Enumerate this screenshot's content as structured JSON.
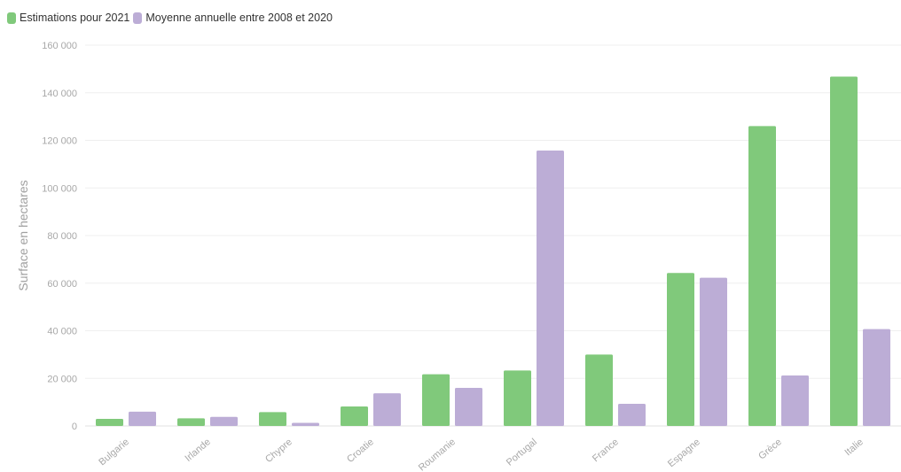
{
  "chart_data": {
    "type": "bar",
    "categories": [
      "Bulgarie",
      "Irlande",
      "Chypre",
      "Croatie",
      "Roumanie",
      "Portugal",
      "France",
      "Espagne",
      "Grèce",
      "Italie"
    ],
    "series": [
      {
        "name": "Estimations pour 2021",
        "color": "#80c97b",
        "values": [
          3000,
          3200,
          5800,
          8200,
          21700,
          23300,
          30000,
          64300,
          126000,
          146800
        ]
      },
      {
        "name": "Moyenne annuelle entre 2008 et 2020",
        "color": "#bcadd6",
        "values": [
          6000,
          3800,
          1300,
          13700,
          16000,
          115700,
          9300,
          62300,
          21200,
          40700
        ]
      }
    ],
    "ylabel": "Surface en hectares",
    "ylim": [
      0,
      160000
    ],
    "yticks": [
      0,
      20000,
      40000,
      60000,
      80000,
      100000,
      120000,
      140000,
      160000
    ],
    "ytick_labels": [
      "0",
      "20 000",
      "40 000",
      "60 000",
      "80 000",
      "100 000",
      "120 000",
      "140 000",
      "160 000"
    ],
    "grid": true,
    "legend_position": "top-left"
  }
}
